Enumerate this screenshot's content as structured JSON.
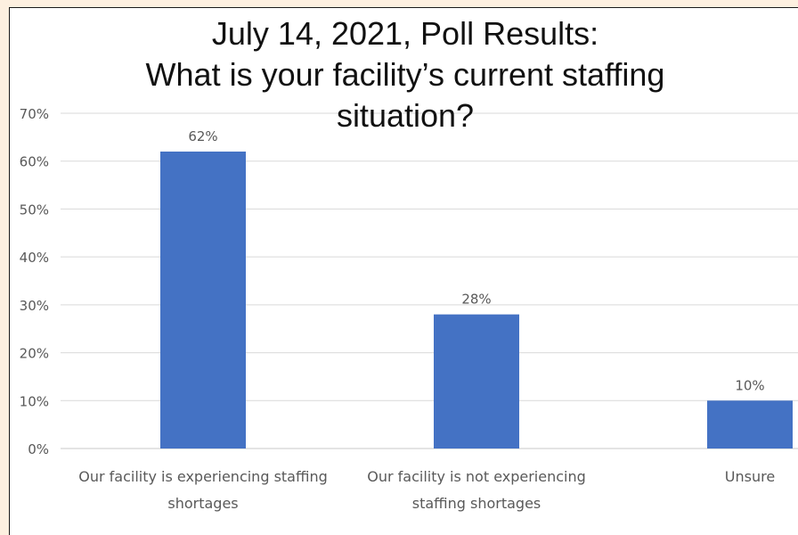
{
  "chart_data": {
    "type": "bar",
    "title": "July 14, 2021, Poll Results:\nWhat is your facility’s current staffing\nsituation?",
    "categories": [
      [
        "Our facility is experiencing staffing",
        "shortages"
      ],
      [
        "Our facility is not experiencing",
        "staffing shortages"
      ],
      [
        "Unsure"
      ]
    ],
    "values": [
      62,
      28,
      10
    ],
    "data_labels": [
      "62%",
      "28%",
      "10%"
    ],
    "ylim": [
      0,
      70
    ],
    "yticks": [
      "0%",
      "10%",
      "20%",
      "30%",
      "40%",
      "50%",
      "60%",
      "70%"
    ],
    "ytick_values": [
      0,
      10,
      20,
      30,
      40,
      50,
      60,
      70
    ],
    "grid": true,
    "bar_color": "#4472c4",
    "grid_color": "#d9d9d9",
    "text_color": "#595959"
  }
}
